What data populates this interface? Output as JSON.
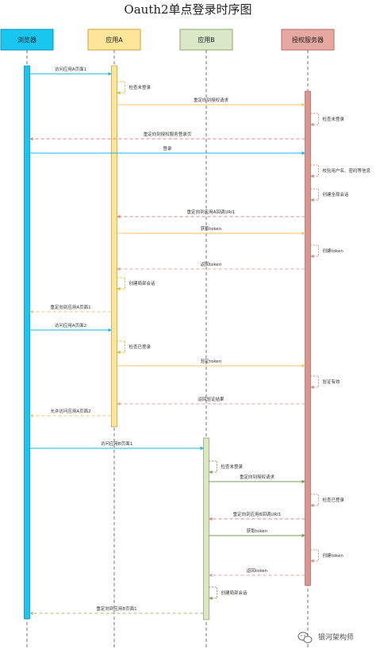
{
  "title": "Oauth2单点登录时序图",
  "participants": [
    {
      "id": "browser",
      "label": "浏览器",
      "fill": "#19c6f0",
      "stroke": "#0f8fb3",
      "bar": "#19c6f0"
    },
    {
      "id": "appA",
      "label": "应用A",
      "fill": "#ffe69a",
      "stroke": "#c9a53a",
      "bar": "#ffe69a"
    },
    {
      "id": "appB",
      "label": "应用B",
      "fill": "#dbe8c8",
      "stroke": "#8fa86a",
      "bar": "#dbe8c8"
    },
    {
      "id": "auth",
      "label": "授权服务器",
      "fill": "#e8a8a2",
      "stroke": "#b66e66",
      "bar": "#d99690"
    }
  ],
  "messages": [
    {
      "from": "browser",
      "to": "appA",
      "label": "访问应用A页面1",
      "style": "solid",
      "color": "#19b6e6"
    },
    {
      "from": "appA",
      "to": "appA",
      "label": "检查未登录",
      "style": "self",
      "color": "#e5b84a"
    },
    {
      "from": "appA",
      "to": "auth",
      "label": "重定向到授权请求",
      "style": "solid",
      "color": "#f2c46a"
    },
    {
      "from": "auth",
      "to": "auth",
      "label": "检查未登录",
      "style": "self",
      "color": "#d9908a"
    },
    {
      "from": "auth",
      "to": "browser",
      "label": "重定向到授权服务登录页",
      "style": "dashed",
      "color": "#e58080"
    },
    {
      "from": "browser",
      "to": "auth",
      "label": "登录",
      "style": "solid",
      "color": "#19b6e6"
    },
    {
      "from": "auth",
      "to": "auth",
      "label": "校验用户名、密码等信息",
      "style": "self",
      "color": "#d9908a"
    },
    {
      "from": "auth",
      "to": "auth",
      "label": "创建全局会话",
      "style": "self",
      "color": "#d9908a"
    },
    {
      "from": "auth",
      "to": "appA",
      "label": "重定向到应用A回调URI1",
      "style": "dashed",
      "color": "#e58080"
    },
    {
      "from": "appA",
      "to": "auth",
      "label": "获取token",
      "style": "solid",
      "color": "#f2c46a"
    },
    {
      "from": "auth",
      "to": "auth",
      "label": "创建token",
      "style": "self",
      "color": "#d9908a"
    },
    {
      "from": "auth",
      "to": "appA",
      "label": "返回token",
      "style": "dashed",
      "color": "#e5a0a0"
    },
    {
      "from": "appA",
      "to": "appA",
      "label": "创建局部会话",
      "style": "self",
      "color": "#e5b84a"
    },
    {
      "from": "appA",
      "to": "browser",
      "label": "重定向到应用A页面1",
      "style": "dashed",
      "color": "#f2c46a"
    },
    {
      "from": "browser",
      "to": "appA",
      "label": "访问应用A页面2",
      "style": "solid",
      "color": "#19b6e6"
    },
    {
      "from": "appA",
      "to": "appA",
      "label": "检查已登录",
      "style": "self",
      "color": "#e5b84a"
    },
    {
      "from": "appA",
      "to": "auth",
      "label": "验证token",
      "style": "solid",
      "color": "#f2c46a"
    },
    {
      "from": "auth",
      "to": "auth",
      "label": "验证有效",
      "style": "self",
      "color": "#d9908a"
    },
    {
      "from": "auth",
      "to": "appA",
      "label": "返回验证结果",
      "style": "dashed",
      "color": "#e5a0a0"
    },
    {
      "from": "appA",
      "to": "browser",
      "label": "允许访问应用A页面2",
      "style": "dashed",
      "color": "#f2c46a"
    },
    {
      "from": "browser",
      "to": "appB",
      "label": "访问应用B页面1",
      "style": "solid",
      "color": "#19b6e6"
    },
    {
      "from": "appB",
      "to": "appB",
      "label": "检查未登录",
      "style": "self",
      "color": "#8aa065"
    },
    {
      "from": "appB",
      "to": "auth",
      "label": "重定向到授权请求",
      "style": "solid",
      "color": "#7f9a55"
    },
    {
      "from": "auth",
      "to": "auth",
      "label": "检查已登录",
      "style": "self",
      "color": "#d9908a"
    },
    {
      "from": "auth",
      "to": "appB",
      "label": "重定向到应用B回调URI1",
      "style": "dashed",
      "color": "#e58080"
    },
    {
      "from": "appB",
      "to": "auth",
      "label": "获取token",
      "style": "solid",
      "color": "#7f9a55"
    },
    {
      "from": "auth",
      "to": "auth",
      "label": "创建token",
      "style": "self",
      "color": "#d9908a"
    },
    {
      "from": "auth",
      "to": "appB",
      "label": "返回token",
      "style": "dashed",
      "color": "#e5a0a0"
    },
    {
      "from": "appB",
      "to": "appB",
      "label": "创建局部会话",
      "style": "self",
      "color": "#8aa065"
    },
    {
      "from": "appB",
      "to": "browser",
      "label": "重定向到应用B页面1",
      "style": "dashed",
      "color": "#a8bb88"
    }
  ],
  "watermark": {
    "text": "银河架构师",
    "icon": "wechat-icon"
  }
}
